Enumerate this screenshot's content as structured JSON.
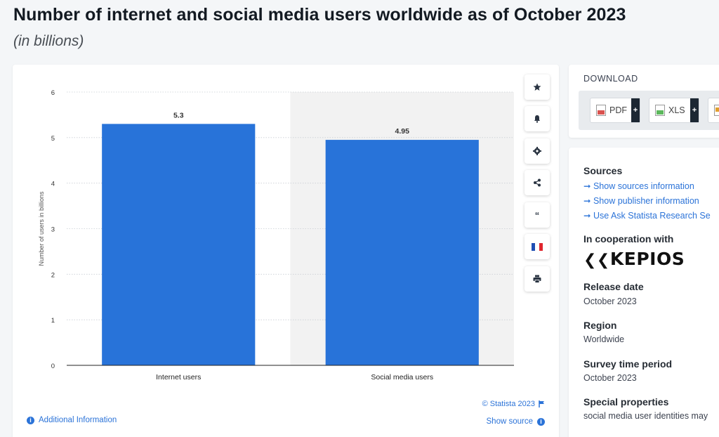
{
  "header": {
    "title": "Number of internet and social media users worldwide as of October 2023",
    "subtitle": "(in billions)"
  },
  "chart_data": {
    "type": "bar",
    "categories": [
      "Internet users",
      "Social media users"
    ],
    "values": [
      5.3,
      4.95
    ],
    "value_labels": [
      "5.3",
      "4.95"
    ],
    "ylabel": "Number of users in billions",
    "ylim": [
      0,
      6
    ],
    "yticks": [
      0,
      1,
      2,
      3,
      4,
      5,
      6
    ],
    "grid": true,
    "bar_color": "#2873d9",
    "highlight_band_color": "#f2f2f2"
  },
  "chart_footer": {
    "copyright": "© Statista 2023",
    "additional_info": "Additional Information",
    "show_source": "Show source"
  },
  "toolbar": {
    "icons": [
      "star-icon",
      "bell-icon",
      "gear-icon",
      "share-icon",
      "quote-icon",
      "flag-icon",
      "print-icon"
    ]
  },
  "download": {
    "title": "DOWNLOAD",
    "buttons": [
      {
        "label": "PDF",
        "plus": "+",
        "icon_color": "#d9534f"
      },
      {
        "label": "XLS",
        "plus": "+",
        "icon_color": "#5cb85c"
      }
    ]
  },
  "info": {
    "sources_heading": "Sources",
    "links": [
      "Show sources information",
      "Show publisher information",
      "Use Ask Statista Research Se"
    ],
    "cooperation_heading": "In cooperation with",
    "cooperation_logo": "KEPIOS",
    "release_heading": "Release date",
    "release_value": "October 2023",
    "region_heading": "Region",
    "region_value": "Worldwide",
    "survey_heading": "Survey time period",
    "survey_value": "October 2023",
    "special_heading": "Special properties",
    "special_value": "social media user identities may"
  },
  "colors": {
    "accent": "#2b73d8"
  }
}
